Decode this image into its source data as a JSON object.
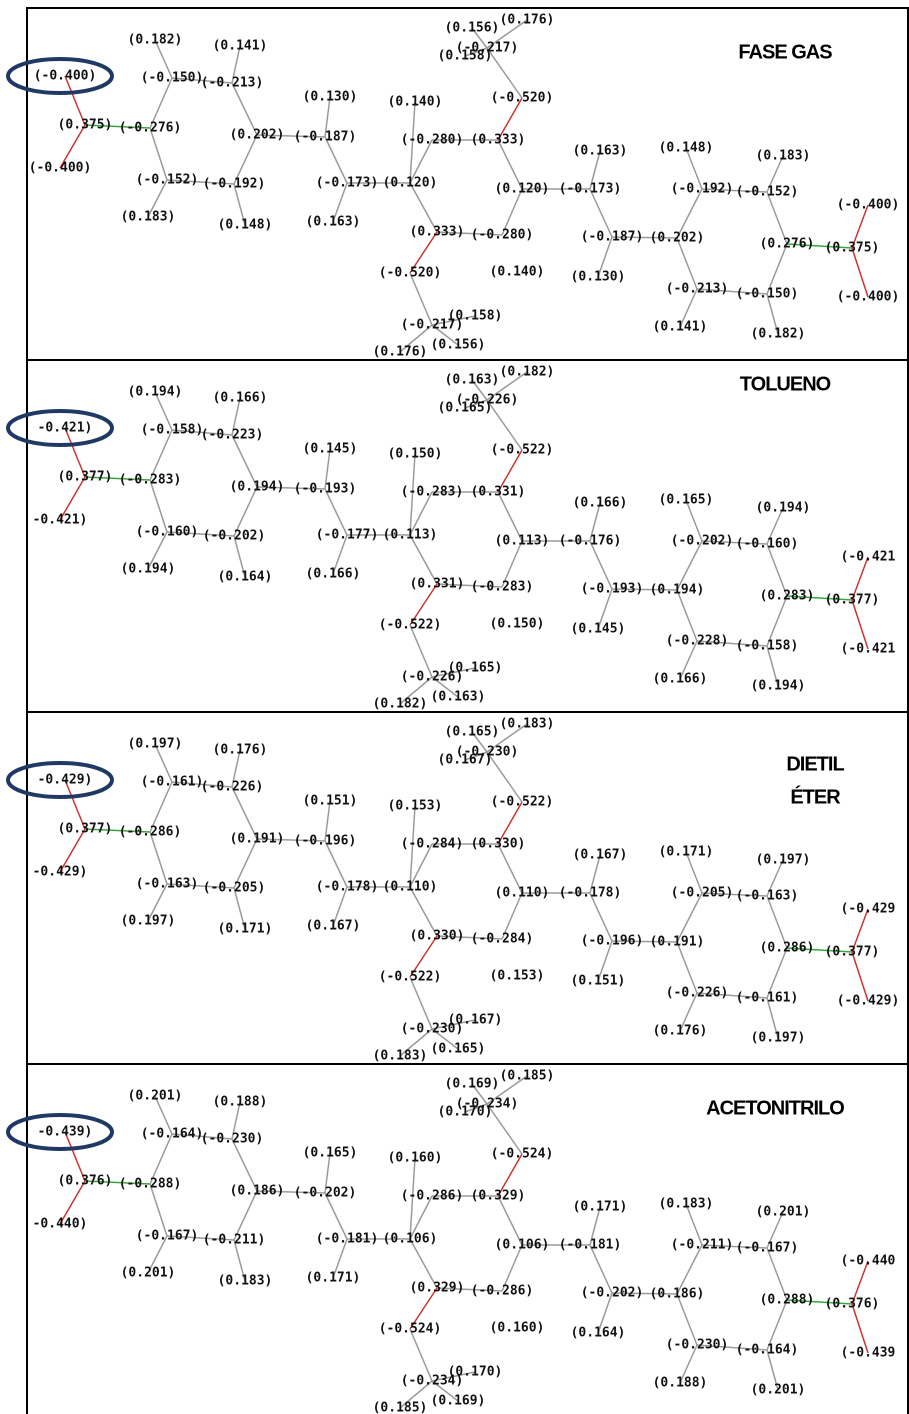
{
  "panels": [
    {
      "title": [
        "FASE GAS"
      ],
      "labels": [
        "(0.182)",
        "(0.141)",
        "(-0.400)",
        "(-0.150)",
        "(-0.213)",
        "(0.130)",
        "(0.140)",
        "(0.375)",
        "(-0.276)",
        "(0.202)",
        "(-0.187)",
        "(-0.280)",
        "(0.333)",
        "(-0.400)",
        "(-0.152)",
        "(-0.192)",
        "(-0.173)",
        "(0.120)",
        "(0.120)",
        "(-0.173)",
        "(0.183)",
        "(0.148)",
        "(0.163)",
        "(0.333)",
        "(-0.280)",
        "(0.163)",
        "(0.148)",
        "(0.183)",
        "(-0.192)",
        "(-0.152)",
        "(-0.400)",
        "(-0.187)",
        "(0.202)",
        "(0.276)",
        "(0.375)",
        "(-0.520)",
        "(0.140)",
        "(0.130)",
        "(-0.213)",
        "(-0.150)",
        "(-0.400)",
        "(0.141)",
        "(0.182)",
        "(-0.217)",
        "(0.158)",
        "(0.156)",
        "(0.176)",
        "(0.156)",
        "(0.176)",
        "(-0.217)",
        "(0.158)",
        "(-0.520)"
      ]
    },
    {
      "title": [
        "TOLUENO"
      ],
      "labels": [
        "(0.194)",
        "(0.166)",
        "-0.421)",
        "(-0.158)",
        "(-0.223)",
        "(0.145)",
        "(0.150)",
        "(0.377)",
        "(-0.283)",
        "(0.194)",
        "(-0.193)",
        "(-0.283)",
        "(0.331)",
        "-0.421)",
        "(-0.160)",
        "(-0.202)",
        "(-0.177)",
        "(0.113)",
        "(0.113)",
        "(-0.176)",
        "(0.194)",
        "(0.164)",
        "(0.166)",
        "(0.331)",
        "(-0.283)",
        "(0.166)",
        "(0.165)",
        "(0.194)",
        "(-0.202)",
        "(-0.160)",
        "(-0.421",
        "(-0.193)",
        "(0.194)",
        "(0.283)",
        "(0.377)",
        "(-0.522)",
        "(0.150)",
        "(0.145)",
        "(-0.228)",
        "(-0.158)",
        "(-0.421",
        "(0.166)",
        "(0.194)",
        "(-0.226)",
        "(0.165)",
        "(0.163)",
        "(0.182)",
        "(0.163)",
        "(0.182)",
        "(-0.226)",
        "(0.165)",
        "(-0.522)"
      ]
    },
    {
      "title": [
        "DIETIL",
        "ÉTER"
      ],
      "labels": [
        "(0.197)",
        "(0.176)",
        "-0.429)",
        "(-0.161)",
        "(-0.226)",
        "(0.151)",
        "(0.153)",
        "(0.377)",
        "(-0.286)",
        "(0.191)",
        "(-0.196)",
        "(-0.284)",
        "(0.330)",
        "-0.429)",
        "(-0.163)",
        "(-0.205)",
        "(-0.178)",
        "(0.110)",
        "(0.110)",
        "(-0.178)",
        "(0.197)",
        "(0.171)",
        "(0.167)",
        "(0.330)",
        "(-0.284)",
        "(0.167)",
        "(0.171)",
        "(0.197)",
        "(-0.205)",
        "(-0.163)",
        "(-0.429",
        "(-0.196)",
        "(0.191)",
        "(0.286)",
        "(0.377)",
        "(-0.522)",
        "(0.153)",
        "(0.151)",
        "(-0.226)",
        "(-0.161)",
        "(-0.429)",
        "(0.176)",
        "(0.197)",
        "(-0.230)",
        "(0.167)",
        "(0.165)",
        "(0.183)",
        "(0.165)",
        "(0.183)",
        "(-0.230)",
        "(0.167)",
        "(-0.522)"
      ]
    },
    {
      "title": [
        "ACETONITRILO"
      ],
      "labels": [
        "(0.201)",
        "(0.188)",
        "-0.439)",
        "(-0.164)",
        "(-0.230)",
        "(0.165)",
        "(0.160)",
        "(0.376)",
        "(-0.288)",
        "(0.186)",
        "(-0.202)",
        "(-0.286)",
        "(0.329)",
        "-0.440)",
        "(-0.167)",
        "(-0.211)",
        "(-0.181)",
        "(0.106)",
        "(0.106)",
        "(-0.181)",
        "(0.201)",
        "(0.183)",
        "(0.171)",
        "(0.329)",
        "(-0.286)",
        "(0.171)",
        "(0.183)",
        "(0.201)",
        "(-0.211)",
        "(-0.167)",
        "(-0.440",
        "(-0.202)",
        "(0.186)",
        "(0.288)",
        "(0.376)",
        "(-0.524)",
        "(0.160)",
        "(0.164)",
        "(-0.230)",
        "(-0.164)",
        "(-0.439",
        "(0.188)",
        "(0.201)",
        "(-0.234)",
        "(0.170)",
        "(0.169)",
        "(0.185)",
        "(0.169)",
        "(0.185)",
        "(-0.234)",
        "(0.170)",
        "(-0.524)"
      ]
    }
  ]
}
